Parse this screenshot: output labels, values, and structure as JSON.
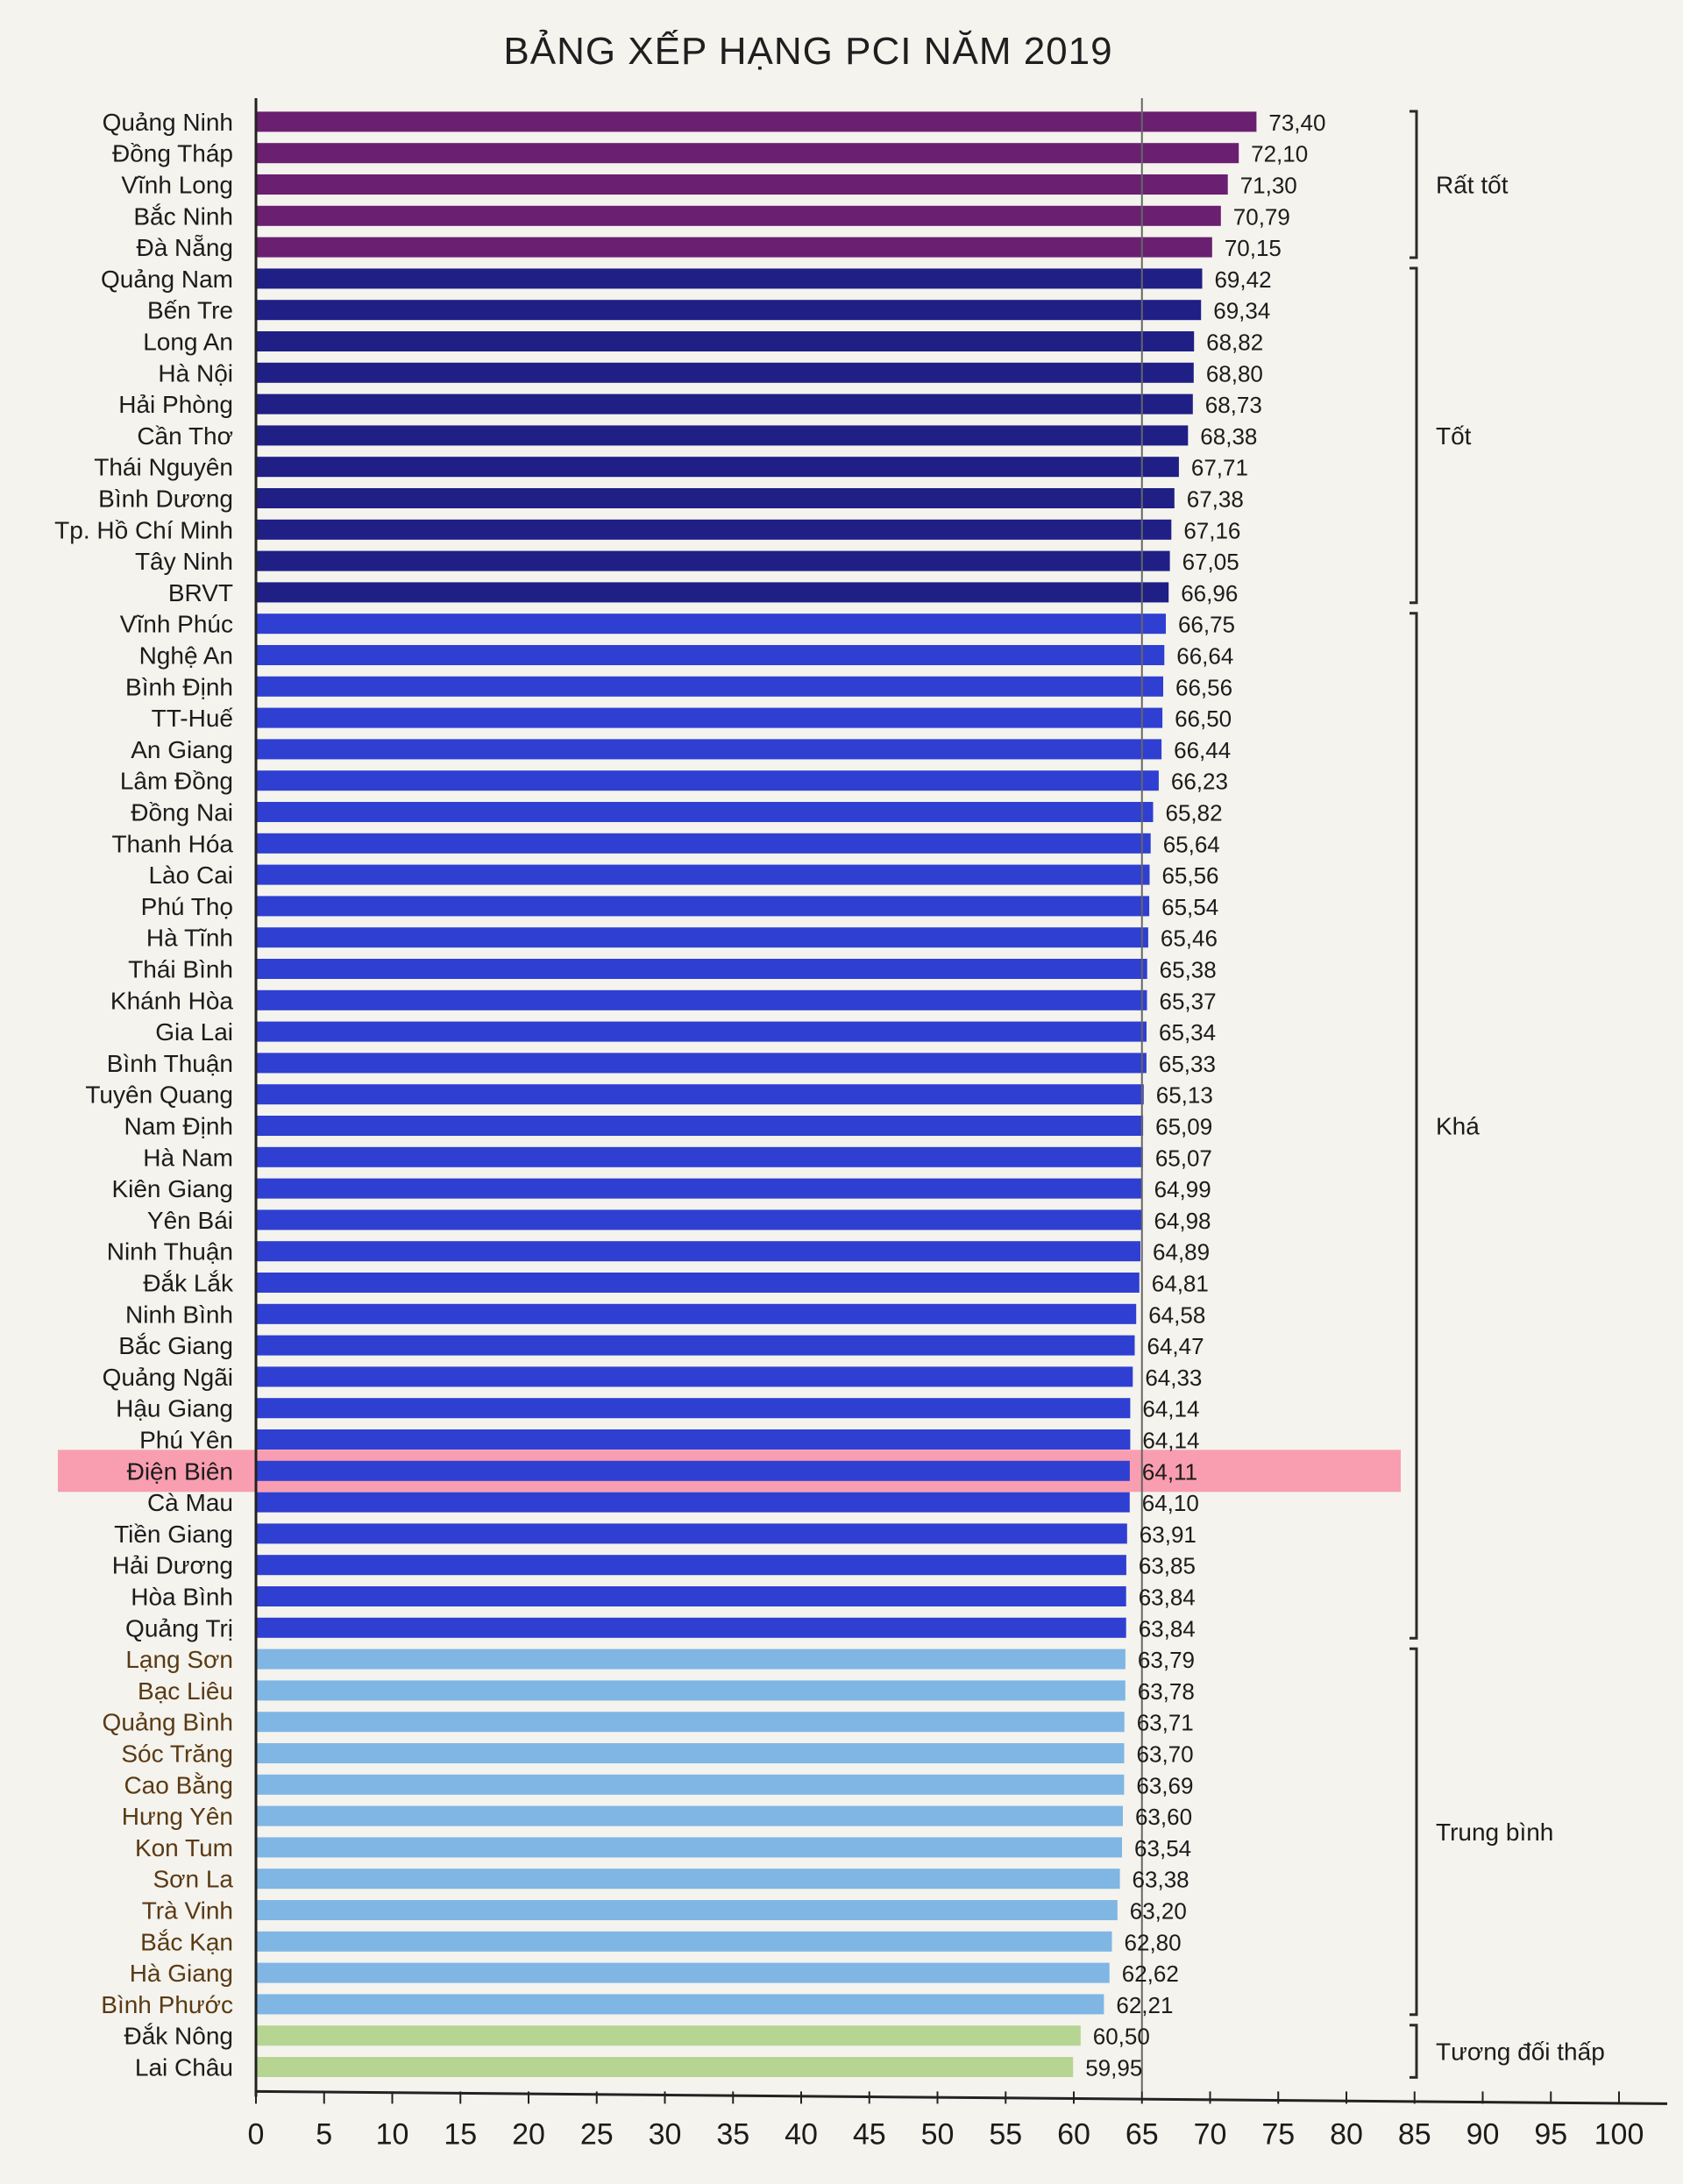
{
  "chart_data": {
    "type": "bar",
    "orientation": "horizontal",
    "title": "BẢNG XẾP HẠNG PCI NĂM 2019",
    "xlim": [
      0,
      100
    ],
    "x_ticks": [
      0,
      5,
      10,
      15,
      20,
      25,
      30,
      35,
      40,
      45,
      50,
      55,
      60,
      65,
      70,
      75,
      80,
      85,
      90,
      95,
      100
    ],
    "reference_line": 65,
    "highlighted_category": "Điện Biên",
    "categories": [
      "Quảng Ninh",
      "Đồng Tháp",
      "Vĩnh Long",
      "Bắc Ninh",
      "Đà Nẵng",
      "Quảng Nam",
      "Bến Tre",
      "Long An",
      "Hà Nội",
      "Hải Phòng",
      "Cần Thơ",
      "Thái Nguyên",
      "Bình Dương",
      "Tp. Hồ Chí Minh",
      "Tây Ninh",
      "BRVT",
      "Vĩnh Phúc",
      "Nghệ An",
      "Bình Định",
      "TT-Huế",
      "An Giang",
      "Lâm Đồng",
      "Đồng Nai",
      "Thanh Hóa",
      "Lào Cai",
      "Phú Thọ",
      "Hà Tĩnh",
      "Thái Bình",
      "Khánh Hòa",
      "Gia Lai",
      "Bình Thuận",
      "Tuyên Quang",
      "Nam Định",
      "Hà Nam",
      "Kiên Giang",
      "Yên Bái",
      "Ninh Thuận",
      "Đắk Lắk",
      "Ninh Bình",
      "Bắc Giang",
      "Quảng Ngãi",
      "Hậu Giang",
      "Phú Yên",
      "Điện Biên",
      "Cà Mau",
      "Tiền Giang",
      "Hải Dương",
      "Hòa Bình",
      "Quảng Trị",
      "Lạng Sơn",
      "Bạc Liêu",
      "Quảng Bình",
      "Sóc Trăng",
      "Cao Bằng",
      "Hưng Yên",
      "Kon Tum",
      "Sơn La",
      "Trà Vinh",
      "Bắc Kạn",
      "Hà Giang",
      "Bình Phước",
      "Đắk Nông",
      "Lai Châu"
    ],
    "values": [
      73.4,
      72.1,
      71.3,
      70.79,
      70.15,
      69.42,
      69.34,
      68.82,
      68.8,
      68.73,
      68.38,
      67.71,
      67.38,
      67.16,
      67.05,
      66.96,
      66.75,
      66.64,
      66.56,
      66.5,
      66.44,
      66.23,
      65.82,
      65.64,
      65.56,
      65.54,
      65.46,
      65.38,
      65.37,
      65.34,
      65.33,
      65.13,
      65.09,
      65.07,
      64.99,
      64.98,
      64.89,
      64.81,
      64.58,
      64.47,
      64.33,
      64.14,
      64.14,
      64.11,
      64.1,
      63.91,
      63.85,
      63.84,
      63.84,
      63.79,
      63.78,
      63.71,
      63.7,
      63.69,
      63.6,
      63.54,
      63.38,
      63.2,
      62.8,
      62.62,
      62.21,
      60.5,
      59.95
    ],
    "value_labels": [
      "73,40",
      "72,10",
      "71,30",
      "70,79",
      "70,15",
      "69,42",
      "69,34",
      "68,82",
      "68,80",
      "68,73",
      "68,38",
      "67,71",
      "67,38",
      "67,16",
      "67,05",
      "66,96",
      "66,75",
      "66,64",
      "66,56",
      "66,50",
      "66,44",
      "66,23",
      "65,82",
      "65,64",
      "65,56",
      "65,54",
      "65,46",
      "65,38",
      "65,37",
      "65,34",
      "65,33",
      "65,13",
      "65,09",
      "65,07",
      "64,99",
      "64,98",
      "64,89",
      "64,81",
      "64,58",
      "64,47",
      "64,33",
      "64,14",
      "64,14",
      "64,11",
      "64,10",
      "63,91",
      "63,85",
      "63,84",
      "63,84",
      "63,79",
      "63,78",
      "63,71",
      "63,70",
      "63,69",
      "63,60",
      "63,54",
      "63,38",
      "63,20",
      "62,80",
      "62,62",
      "62,21",
      "60,50",
      "59,95"
    ],
    "groups": [
      {
        "name": "Rất tốt",
        "from": 0,
        "to": 4,
        "color": "#6a1f70"
      },
      {
        "name": "Tốt",
        "from": 5,
        "to": 15,
        "color": "#1f1f86"
      },
      {
        "name": "Khá",
        "from": 16,
        "to": 48,
        "color": "#2f3fd2"
      },
      {
        "name": "Trung bình",
        "from": 49,
        "to": 60,
        "color": "#7fb6e4"
      },
      {
        "name": "Tương đối thấp",
        "from": 61,
        "to": 62,
        "color": "#b6d592"
      }
    ],
    "highlight_color": "#f98ea5",
    "label_color_trung_binh": "#5a3a14",
    "grid": false
  }
}
